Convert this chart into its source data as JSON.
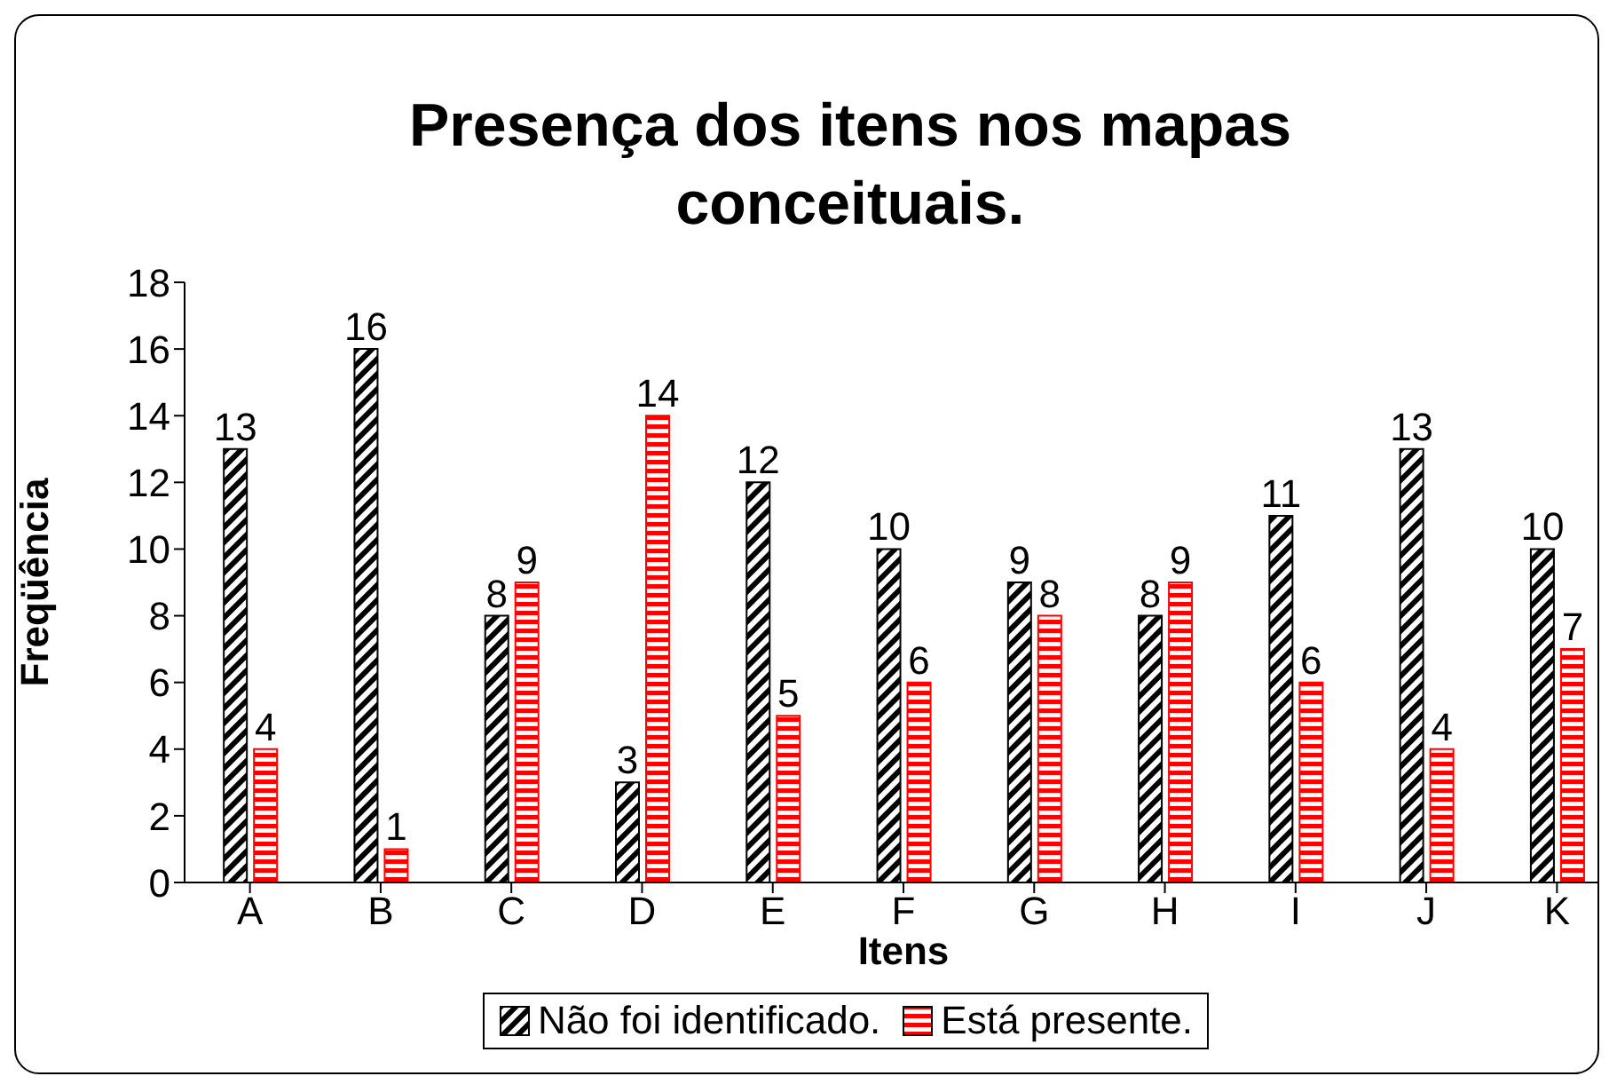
{
  "chart_data": {
    "type": "bar",
    "title": "Presença dos itens nos mapas conceituais.",
    "xlabel": "Itens",
    "ylabel": "Freqüência",
    "categories": [
      "A",
      "B",
      "C",
      "D",
      "E",
      "F",
      "G",
      "H",
      "I",
      "J",
      "K"
    ],
    "series": [
      {
        "name": "Não foi identificado.",
        "color": "#000000",
        "values": [
          13,
          16,
          8,
          3,
          12,
          10,
          9,
          8,
          11,
          13,
          10
        ]
      },
      {
        "name": "Está presente.",
        "color": "#ff0000",
        "values": [
          4,
          1,
          9,
          14,
          5,
          6,
          8,
          9,
          6,
          4,
          7
        ]
      }
    ],
    "ylim": [
      0,
      18
    ],
    "yticks": [
      0,
      2,
      4,
      6,
      8,
      10,
      12,
      14,
      16,
      18
    ],
    "grid": false,
    "legend": "bottom",
    "data_labels": true
  }
}
